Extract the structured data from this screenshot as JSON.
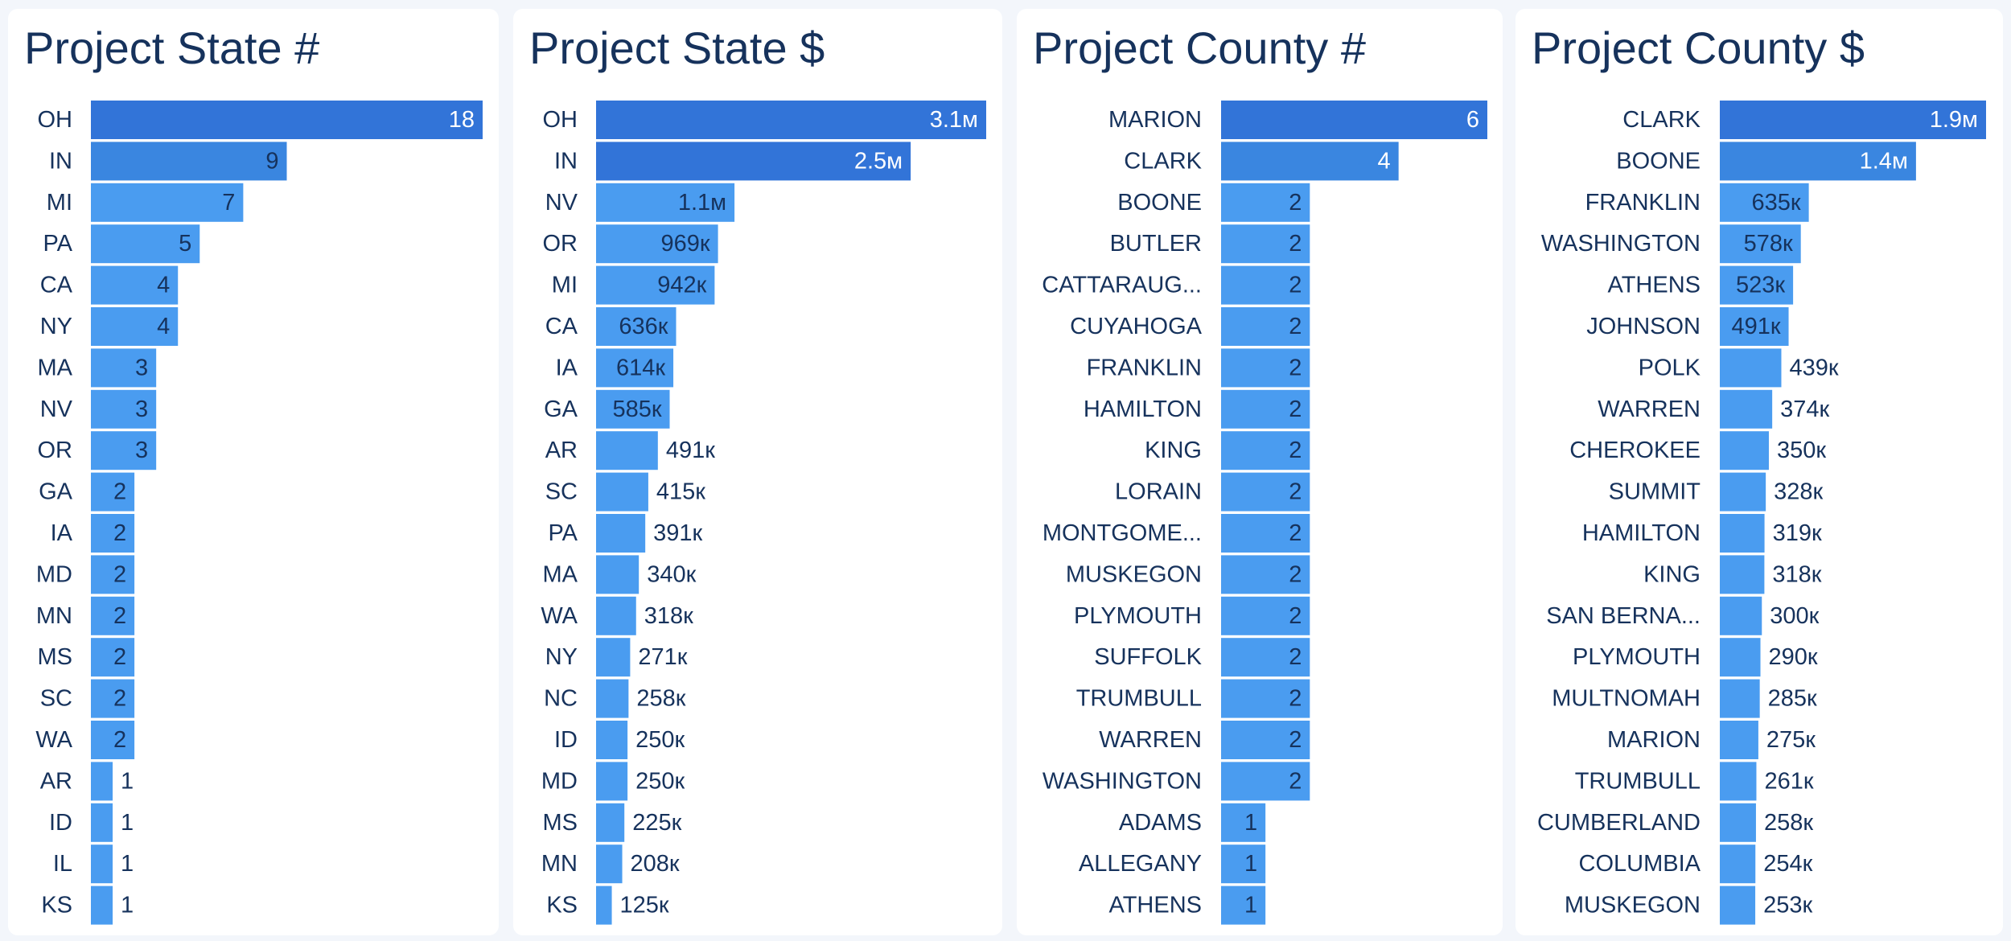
{
  "colors": {
    "bar_dark": "#3274d8",
    "bar_mid": "#3a86e0",
    "bar_light": "#4a9cf0",
    "label_inside_dark": "#ffffff",
    "label_inside_light": "#16325c",
    "label_outside": "#16325c"
  },
  "chart_data": [
    {
      "type": "bar",
      "orientation": "horizontal",
      "title": "Project State #",
      "categories": [
        "OH",
        "IN",
        "MI",
        "PA",
        "CA",
        "NY",
        "MA",
        "NV",
        "OR",
        "GA",
        "IA",
        "MD",
        "MN",
        "MS",
        "SC",
        "WA",
        "AR",
        "ID",
        "IL",
        "KS"
      ],
      "values": [
        18,
        9,
        7,
        5,
        4,
        4,
        3,
        3,
        3,
        2,
        2,
        2,
        2,
        2,
        2,
        2,
        1,
        1,
        1,
        1
      ],
      "labels": [
        "18",
        "9",
        "7",
        "5",
        "4",
        "4",
        "3",
        "3",
        "3",
        "2",
        "2",
        "2",
        "2",
        "2",
        "2",
        "2",
        "1",
        "1",
        "1",
        "1"
      ],
      "xlim": [
        0,
        18
      ]
    },
    {
      "type": "bar",
      "orientation": "horizontal",
      "title": "Project State $",
      "categories": [
        "OH",
        "IN",
        "NV",
        "OR",
        "MI",
        "CA",
        "IA",
        "GA",
        "AR",
        "SC",
        "PA",
        "MA",
        "WA",
        "NY",
        "NC",
        "ID",
        "MD",
        "MS",
        "MN",
        "KS"
      ],
      "values": [
        3100000,
        2500000,
        1100000,
        969000,
        942000,
        636000,
        614000,
        585000,
        491000,
        415000,
        391000,
        340000,
        318000,
        271000,
        258000,
        250000,
        250000,
        225000,
        208000,
        125000
      ],
      "labels": [
        "3.1м",
        "2.5м",
        "1.1м",
        "969к",
        "942к",
        "636к",
        "614к",
        "585к",
        "491к",
        "415к",
        "391к",
        "340к",
        "318к",
        "271к",
        "258к",
        "250к",
        "250к",
        "225к",
        "208к",
        "125к"
      ],
      "xlim": [
        0,
        3100000
      ]
    },
    {
      "type": "bar",
      "orientation": "horizontal",
      "title": "Project County #",
      "categories": [
        "MARION",
        "CLARK",
        "BOONE",
        "BUTLER",
        "CATTARAUG...",
        "CUYAHOGA",
        "FRANKLIN",
        "HAMILTON",
        "KING",
        "LORAIN",
        "MONTGOME...",
        "MUSKEGON",
        "PLYMOUTH",
        "SUFFOLK",
        "TRUMBULL",
        "WARREN",
        "WASHINGTON",
        "ADAMS",
        "ALLEGANY",
        "ATHENS"
      ],
      "values": [
        6,
        4,
        2,
        2,
        2,
        2,
        2,
        2,
        2,
        2,
        2,
        2,
        2,
        2,
        2,
        2,
        2,
        1,
        1,
        1
      ],
      "labels": [
        "6",
        "4",
        "2",
        "2",
        "2",
        "2",
        "2",
        "2",
        "2",
        "2",
        "2",
        "2",
        "2",
        "2",
        "2",
        "2",
        "2",
        "1",
        "1",
        "1"
      ],
      "xlim": [
        0,
        6
      ]
    },
    {
      "type": "bar",
      "orientation": "horizontal",
      "title": "Project County $",
      "categories": [
        "CLARK",
        "BOONE",
        "FRANKLIN",
        "WASHINGTON",
        "ATHENS",
        "JOHNSON",
        "POLK",
        "WARREN",
        "CHEROKEE",
        "SUMMIT",
        "HAMILTON",
        "KING",
        "SAN BERNA...",
        "PLYMOUTH",
        "MULTNOMAH",
        "MARION",
        "TRUMBULL",
        "CUMBERLAND",
        "COLUMBIA",
        "MUSKEGON"
      ],
      "values": [
        1900000,
        1400000,
        635000,
        578000,
        523000,
        491000,
        439000,
        374000,
        350000,
        328000,
        319000,
        318000,
        300000,
        290000,
        285000,
        275000,
        261000,
        258000,
        254000,
        253000
      ],
      "labels": [
        "1.9м",
        "1.4м",
        "635к",
        "578к",
        "523к",
        "491к",
        "439к",
        "374к",
        "350к",
        "328к",
        "319к",
        "318к",
        "300к",
        "290к",
        "285к",
        "275к",
        "261к",
        "258к",
        "254к",
        "253к"
      ],
      "xlim": [
        0,
        1900000
      ]
    }
  ]
}
